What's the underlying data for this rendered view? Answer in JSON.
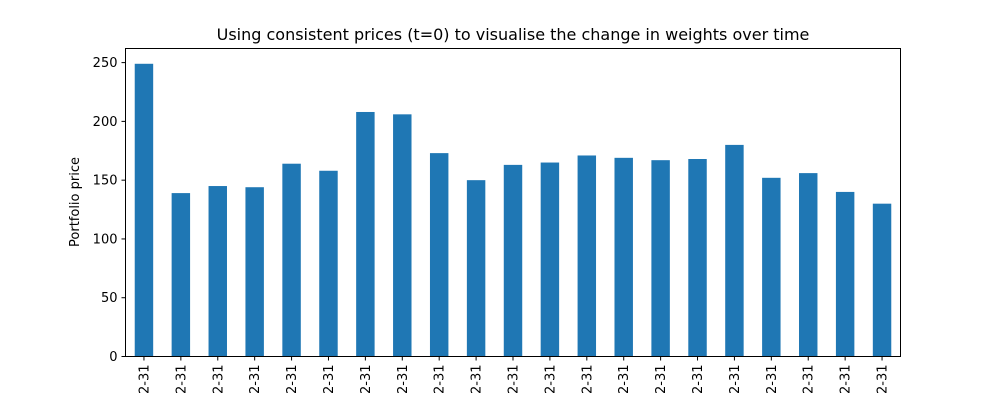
{
  "chart_data": {
    "type": "bar",
    "title": "Using consistent prices (t=0) to visualise the change in weights over time",
    "xlabel": "",
    "ylabel": "Portfolio price",
    "ylim": [
      0,
      262
    ],
    "yticks": [
      0,
      50,
      100,
      150,
      200,
      250
    ],
    "bar_color": "#1f77b4",
    "grid": false,
    "categories": [
      "2-31",
      "2-31",
      "2-31",
      "2-31",
      "2-31",
      "2-31",
      "2-31",
      "2-31",
      "2-31",
      "2-31",
      "2-31",
      "2-31",
      "2-31",
      "2-31",
      "2-31",
      "2-31",
      "2-31",
      "2-31",
      "2-31",
      "2-31",
      "2-31"
    ],
    "values": [
      249,
      139,
      145,
      144,
      164,
      158,
      208,
      206,
      173,
      150,
      163,
      165,
      171,
      169,
      167,
      168,
      180,
      152,
      156,
      140,
      130
    ]
  }
}
